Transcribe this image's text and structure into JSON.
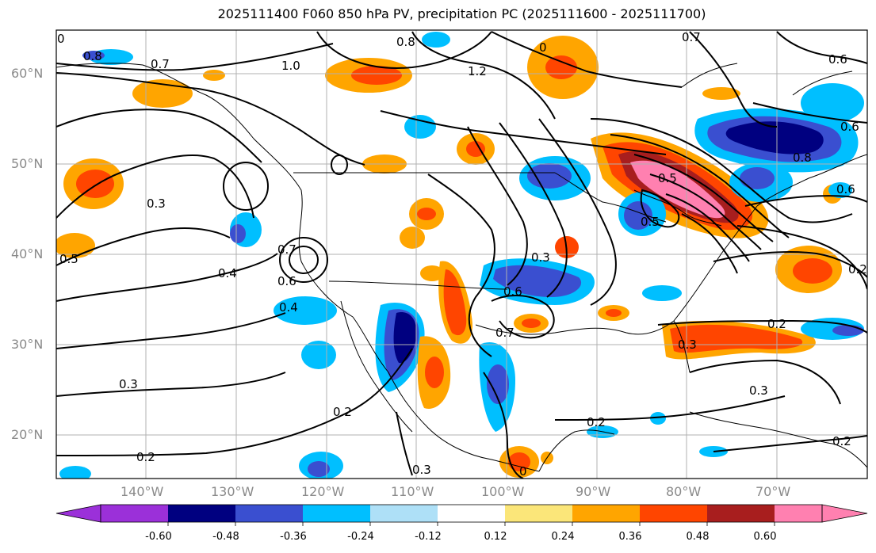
{
  "title": "2025111400 F060 850 hPa PV, precipitation PC (2025111600 - 2025111700)",
  "map": {
    "lat_labels": [
      "60°N",
      "50°N",
      "40°N",
      "30°N",
      "20°N"
    ],
    "lon_labels": [
      "140°W",
      "130°W",
      "120°W",
      "110°W",
      "100°W",
      "90°W",
      "80°W",
      "70°W"
    ],
    "contour_labels": [
      {
        "text": "0"
      },
      {
        "text": "0.8"
      },
      {
        "text": "0.7"
      },
      {
        "text": "1.0"
      },
      {
        "text": "0.8"
      },
      {
        "text": "1.2"
      },
      {
        "text": "0"
      },
      {
        "text": "0.7"
      },
      {
        "text": "0.6"
      },
      {
        "text": "0.6"
      },
      {
        "text": "0.3"
      },
      {
        "text": "0.4"
      },
      {
        "text": "0.5"
      },
      {
        "text": "0.6"
      },
      {
        "text": "0.7"
      },
      {
        "text": "0.4"
      },
      {
        "text": "0.3"
      },
      {
        "text": "0.6"
      },
      {
        "text": "0.7"
      },
      {
        "text": "0.3"
      },
      {
        "text": "0.2"
      },
      {
        "text": "0.2"
      },
      {
        "text": "0.3"
      },
      {
        "text": "0.2"
      },
      {
        "text": "0.3"
      },
      {
        "text": "0.2"
      },
      {
        "text": "0.2"
      },
      {
        "text": "0.5"
      },
      {
        "text": "0.8"
      },
      {
        "text": "0.6"
      },
      {
        "text": "0.5"
      },
      {
        "text": "0.3"
      },
      {
        "text": "0.2"
      },
      {
        "text": "0"
      }
    ]
  },
  "colorbar": {
    "ticks": [
      "-0.60",
      "-0.48",
      "-0.36",
      "-0.24",
      "-0.12",
      "0.12",
      "0.24",
      "0.36",
      "0.48",
      "0.60"
    ],
    "colors": [
      "#9b30d9",
      "#000080",
      "#3a4fd0",
      "#00bfff",
      "#aee0f7",
      "#ffffff",
      "#fbe679",
      "#ffa500",
      "#ff4500",
      "#a81e1e",
      "#ff80b0",
      "#ff80b0"
    ]
  },
  "palette": {
    "grid": "#b0b0b0",
    "contour": "#000000",
    "coast": "#000000"
  }
}
